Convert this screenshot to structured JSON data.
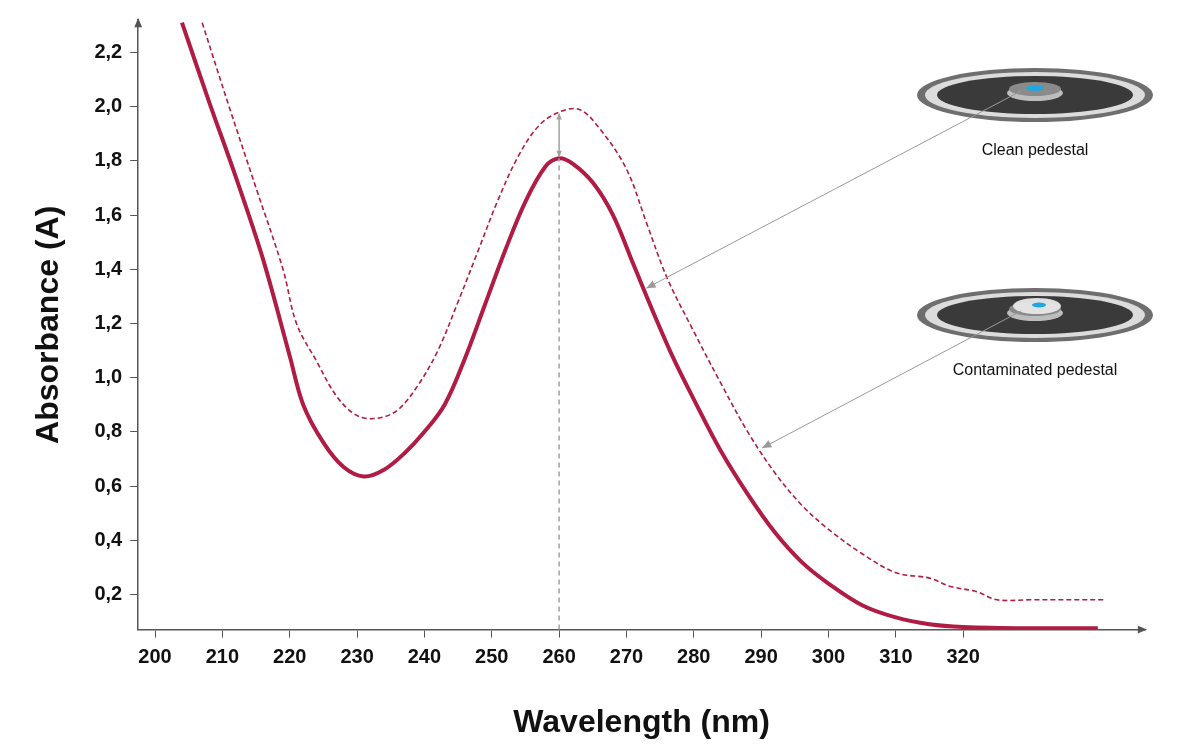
{
  "chart_data": {
    "type": "line",
    "x_label": "Wavelength (nm)",
    "y_label": "Absorbance (A)",
    "xlim": [
      197.5,
      347
    ],
    "xticks": [
      200,
      210,
      220,
      230,
      240,
      250,
      260,
      270,
      280,
      290,
      300,
      310,
      320
    ],
    "ylim": [
      0.07,
      2.32
    ],
    "yticks": [
      {
        "value": 0.2,
        "label": "0,2"
      },
      {
        "value": 0.4,
        "label": "0,4"
      },
      {
        "value": 0.6,
        "label": "0,6"
      },
      {
        "value": 0.8,
        "label": "0,8"
      },
      {
        "value": 1.0,
        "label": "1,0"
      },
      {
        "value": 1.2,
        "label": "1,2"
      },
      {
        "value": 1.4,
        "label": "1,4"
      },
      {
        "value": 1.6,
        "label": "1,6"
      },
      {
        "value": 1.8,
        "label": "1,8"
      },
      {
        "value": 2.0,
        "label": "2,0"
      },
      {
        "value": 2.2,
        "label": "2,2"
      }
    ],
    "grid": false,
    "series": [
      {
        "name": "Clean pedestal",
        "color": "#b01c43",
        "line_style": "solid",
        "marker": "none",
        "x": [
          204,
          208,
          212,
          216,
          220,
          222,
          225,
          228,
          231,
          234,
          237,
          240,
          243,
          246,
          249,
          252,
          255,
          258,
          260,
          262,
          265,
          268,
          271,
          274,
          277,
          280,
          284,
          288,
          292,
          296,
          300,
          305,
          310,
          315,
          320,
          330,
          340
        ],
        "values": [
          2.31,
          2.02,
          1.74,
          1.44,
          1.08,
          0.9,
          0.76,
          0.67,
          0.635,
          0.66,
          0.72,
          0.8,
          0.9,
          1.07,
          1.27,
          1.47,
          1.65,
          1.78,
          1.81,
          1.79,
          1.72,
          1.6,
          1.42,
          1.24,
          1.07,
          0.92,
          0.73,
          0.57,
          0.43,
          0.32,
          0.24,
          0.16,
          0.115,
          0.09,
          0.08,
          0.075,
          0.075
        ]
      },
      {
        "name": "Contaminated pedestal",
        "color": "#b01c43",
        "line_style": "dashed",
        "marker": "none",
        "x": [
          207,
          211,
          215,
          219,
          221,
          224,
          227,
          230,
          233,
          236,
          239,
          242,
          245,
          248,
          251,
          254,
          257,
          260,
          263,
          266,
          270,
          273,
          276,
          280,
          284,
          288,
          292,
          296,
          300,
          305,
          310,
          315,
          318,
          322,
          325,
          330,
          341
        ],
        "values": [
          2.31,
          2.0,
          1.7,
          1.4,
          1.2,
          1.06,
          0.93,
          0.86,
          0.85,
          0.88,
          0.97,
          1.1,
          1.28,
          1.47,
          1.66,
          1.82,
          1.93,
          1.98,
          1.99,
          1.92,
          1.77,
          1.57,
          1.37,
          1.17,
          0.98,
          0.8,
          0.65,
          0.53,
          0.44,
          0.35,
          0.28,
          0.26,
          0.23,
          0.21,
          0.18,
          0.18,
          0.18
        ]
      }
    ],
    "annotations": [
      {
        "text": "Clean pedestal",
        "x": 272.5,
        "y": 1.33
      },
      {
        "text": "Contaminated pedestal",
        "x": 289.7,
        "y": 0.74
      }
    ],
    "reference_line": {
      "x": 260
    }
  }
}
